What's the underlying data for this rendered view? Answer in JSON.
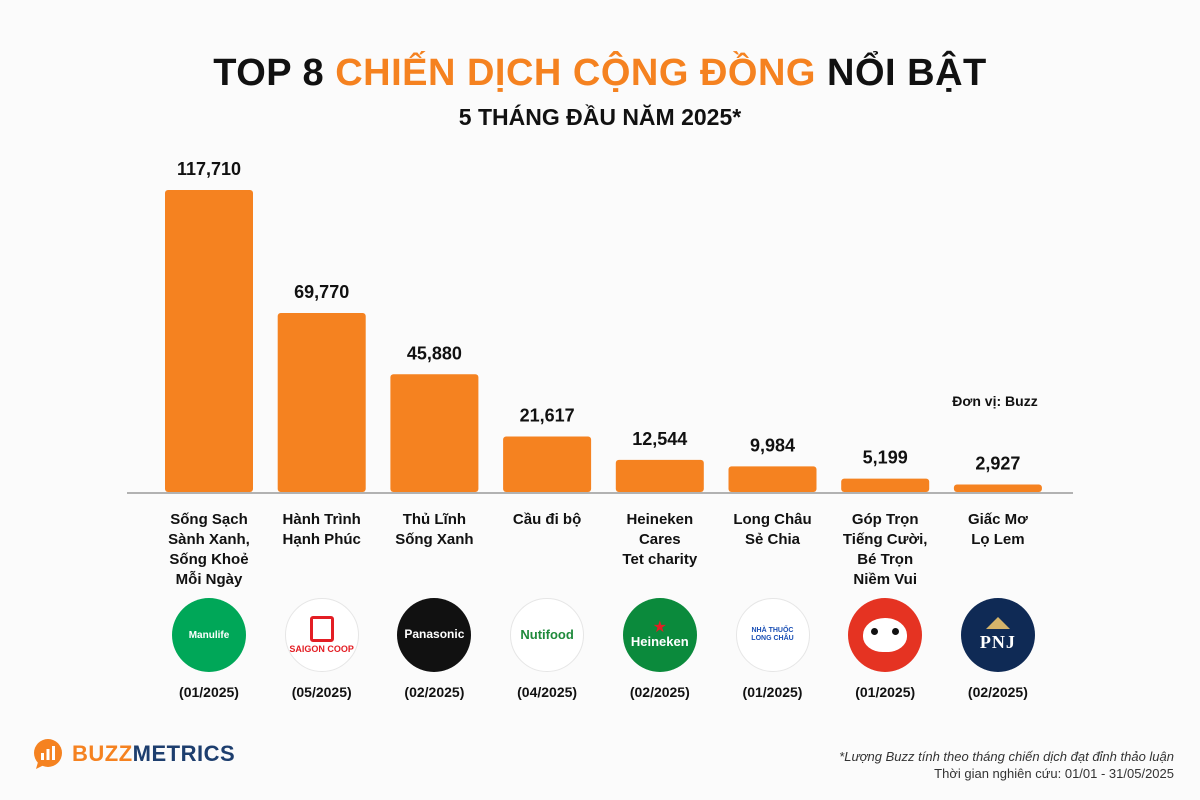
{
  "header": {
    "title_prefix": "TOP 8 ",
    "title_accent": "CHIẾN DỊCH CỘNG ĐỒNG",
    "title_suffix": " NỔI BẬT",
    "subtitle": "5 THÁNG ĐẦU NĂM 2025*"
  },
  "unit_note": "Đơn vị: Buzz",
  "chart_data": {
    "type": "bar",
    "title": "TOP 8 CHIẾN DỊCH CỘNG ĐỒNG NỔI BẬT",
    "subtitle": "5 THÁNG ĐẦU NĂM 2025*",
    "ylabel": "Buzz",
    "categories": [
      "Sống Sạch Sành Xanh, Sống Khoẻ Mỗi Ngày",
      "Hành Trình Hạnh Phúc",
      "Thủ Lĩnh Sống Xanh",
      "Cầu đi bộ",
      "Heineken Cares Tet charity",
      "Long Châu Sẻ Chia",
      "Góp Trọn Tiếng Cười, Bé Trọn Niềm Vui",
      "Giấc Mơ Lọ Lem"
    ],
    "values": [
      117710,
      69770,
      45880,
      21617,
      12544,
      9984,
      5199,
      2927
    ],
    "value_labels": [
      "117,710",
      "69,770",
      "45,880",
      "21,617",
      "12,544",
      "9,984",
      "5,199",
      "2,927"
    ],
    "ylim": [
      0,
      117710
    ],
    "bar_color": "#f58220"
  },
  "campaigns": [
    {
      "label": "Sống Sạch\nSành Xanh,\nSống Khoẻ\nMỗi Ngày",
      "brand": "Manulife",
      "date": "(01/2025)",
      "logo_bg": "#00a758",
      "logo_fg": "#ffffff"
    },
    {
      "label": "Hành Trình\nHạnh Phúc",
      "brand": "SAIGON COOP",
      "date": "(05/2025)",
      "logo_bg": "#ffffff",
      "logo_fg": "#e31e24"
    },
    {
      "label": "Thủ Lĩnh\nSống Xanh",
      "brand": "Panasonic",
      "date": "(02/2025)",
      "logo_bg": "#111111",
      "logo_fg": "#ffffff"
    },
    {
      "label": "Cầu đi bộ",
      "brand": "Nutifood",
      "date": "(04/2025)",
      "logo_bg": "#ffffff",
      "logo_fg": "#1f8a3b"
    },
    {
      "label": "Heineken\nCares\nTet charity",
      "brand": "Heineken",
      "date": "(02/2025)",
      "logo_bg": "#0b8a3c",
      "logo_fg": "#ffffff"
    },
    {
      "label": "Long Châu\nSẻ Chia",
      "brand": "NHÀ THUỐC\nLONG CHÂU",
      "date": "(01/2025)",
      "logo_bg": "#ffffff",
      "logo_fg": "#1a4fb5"
    },
    {
      "label": "Góp Trọn\nTiếng Cười,\nBé Trọn\nNiềm Vui",
      "brand": "",
      "date": "(01/2025)",
      "logo_bg": "#e53322",
      "logo_fg": "#ffffff"
    },
    {
      "label": "Giấc Mơ\nLọ Lem",
      "brand": "PNJ",
      "date": "(02/2025)",
      "logo_bg": "#0f2a55",
      "logo_fg": "#ffffff"
    }
  ],
  "footer": {
    "brand_buzz": "BUZZ",
    "brand_metrics": "METRICS",
    "note_line1": "*Lượng Buzz tính theo tháng chiến dịch đạt đỉnh thảo luận",
    "note_line2": "Thời gian nghiên cứu: 01/01 - 31/05/2025"
  }
}
